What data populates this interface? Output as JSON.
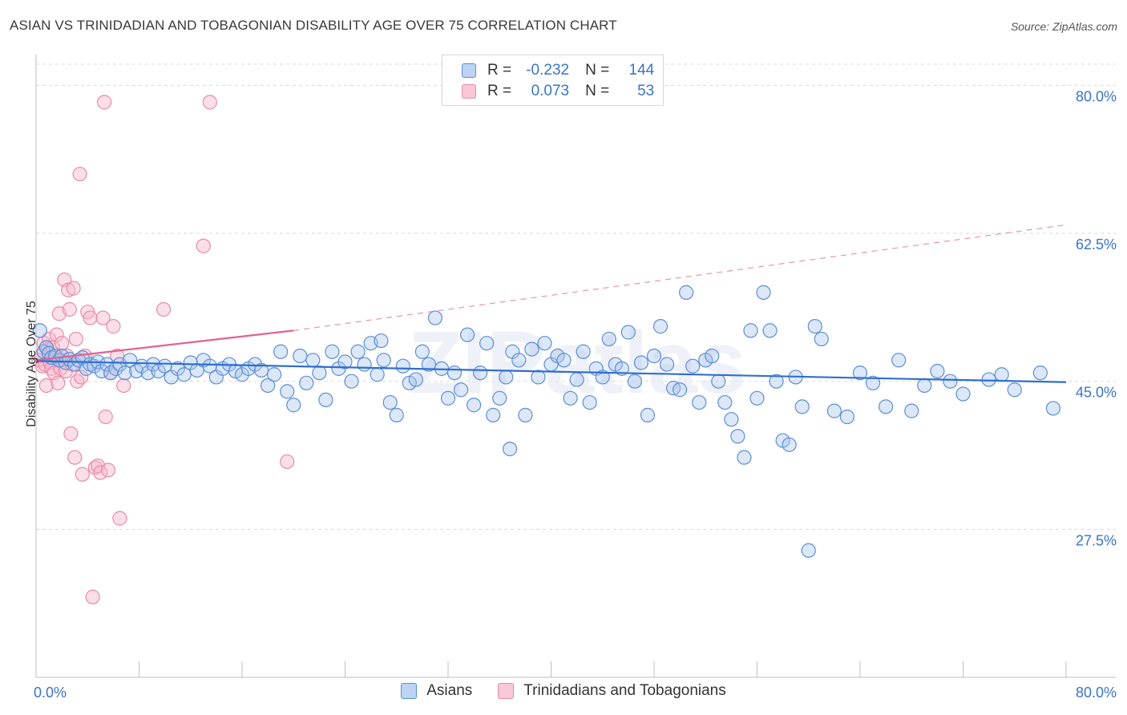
{
  "header": {
    "title": "ASIAN VS TRINIDADIAN AND TOBAGONIAN DISABILITY AGE OVER 75 CORRELATION CHART",
    "source": "Source: ZipAtlas.com"
  },
  "legend": {
    "rows": [
      {
        "r_label": "R =",
        "r_value": "-0.232",
        "n_label": "N =",
        "n_value": "144"
      },
      {
        "r_label": "R =",
        "r_value": "0.073",
        "n_label": "N =",
        "n_value": "53"
      }
    ],
    "series": [
      "Asians",
      "Trinidadians and Tobagonians"
    ]
  },
  "colors": {
    "blue_fill": "#a8c4ee",
    "blue_stroke": "#5b8fd6",
    "blue_line": "#2f6fd0",
    "pink_fill": "#f7b9cc",
    "pink_stroke": "#e98aa8",
    "pink_line": "#e2638c",
    "axis_text": "#3a74c9"
  },
  "watermark": "ZIPatlas",
  "chart_data": {
    "type": "scatter",
    "title": "ASIAN VS TRINIDADIAN AND TOBAGONIAN DISABILITY AGE OVER 75 CORRELATION CHART",
    "xlabel": "",
    "ylabel": "Disability Age Over 75",
    "xlim": [
      0,
      80
    ],
    "ylim": [
      10,
      82.5
    ],
    "x_tick_labels": [
      "0.0%",
      "80.0%"
    ],
    "y_ticks": [
      27.5,
      45.0,
      62.5,
      80.0
    ],
    "y_tick_labels": [
      "27.5%",
      "45.0%",
      "62.5%",
      "80.0%"
    ],
    "grid": true,
    "legend_position": "top-center",
    "series": [
      {
        "name": "Asians",
        "r": -0.232,
        "n": 144,
        "trend": {
          "x": [
            0,
            80
          ],
          "y": [
            47.4,
            44.9
          ],
          "style": "solid"
        },
        "points": [
          [
            0.3,
            51.0
          ],
          [
            0.6,
            48.5
          ],
          [
            0.8,
            49.0
          ],
          [
            1.0,
            48.3
          ],
          [
            1.2,
            47.8
          ],
          [
            1.5,
            48.0
          ],
          [
            1.8,
            47.5
          ],
          [
            2.0,
            48.0
          ],
          [
            2.3,
            47.2
          ],
          [
            2.6,
            47.6
          ],
          [
            3.0,
            47.0
          ],
          [
            3.3,
            47.5
          ],
          [
            3.6,
            47.8
          ],
          [
            3.9,
            46.5
          ],
          [
            4.2,
            47.0
          ],
          [
            4.5,
            46.8
          ],
          [
            4.8,
            47.3
          ],
          [
            5.1,
            46.2
          ],
          [
            5.5,
            47.0
          ],
          [
            5.8,
            46.0
          ],
          [
            6.2,
            46.5
          ],
          [
            6.5,
            47.0
          ],
          [
            6.9,
            46.0
          ],
          [
            7.3,
            47.5
          ],
          [
            7.8,
            46.2
          ],
          [
            8.2,
            46.8
          ],
          [
            8.7,
            46.0
          ],
          [
            9.1,
            47.0
          ],
          [
            9.5,
            46.2
          ],
          [
            10.0,
            46.8
          ],
          [
            10.5,
            45.5
          ],
          [
            11.0,
            46.5
          ],
          [
            11.5,
            45.8
          ],
          [
            12.0,
            47.2
          ],
          [
            12.5,
            46.3
          ],
          [
            13.0,
            47.5
          ],
          [
            13.5,
            46.8
          ],
          [
            14.0,
            45.5
          ],
          [
            14.5,
            46.5
          ],
          [
            15.0,
            47.0
          ],
          [
            15.5,
            46.2
          ],
          [
            16.0,
            45.8
          ],
          [
            16.5,
            46.5
          ],
          [
            17.0,
            47.0
          ],
          [
            17.5,
            46.3
          ],
          [
            18.0,
            44.5
          ],
          [
            18.5,
            45.8
          ],
          [
            19.0,
            48.5
          ],
          [
            19.5,
            43.8
          ],
          [
            20.0,
            42.2
          ],
          [
            20.5,
            48.0
          ],
          [
            21.0,
            44.8
          ],
          [
            21.5,
            47.5
          ],
          [
            22.0,
            46.0
          ],
          [
            22.5,
            42.8
          ],
          [
            23.0,
            48.5
          ],
          [
            23.5,
            46.5
          ],
          [
            24.0,
            47.3
          ],
          [
            24.5,
            45.0
          ],
          [
            25.0,
            48.5
          ],
          [
            25.5,
            47.0
          ],
          [
            26.0,
            49.5
          ],
          [
            26.5,
            45.8
          ],
          [
            27.0,
            47.5
          ],
          [
            27.5,
            42.5
          ],
          [
            28.0,
            41.0
          ],
          [
            28.5,
            46.8
          ],
          [
            29.0,
            44.8
          ],
          [
            29.5,
            45.2
          ],
          [
            30.0,
            48.5
          ],
          [
            30.5,
            47.0
          ],
          [
            31.0,
            52.5
          ],
          [
            31.5,
            46.5
          ],
          [
            32.0,
            43.0
          ],
          [
            32.5,
            46.0
          ],
          [
            33.0,
            44.0
          ],
          [
            33.5,
            50.5
          ],
          [
            34.0,
            42.2
          ],
          [
            34.5,
            46.0
          ],
          [
            35.0,
            49.5
          ],
          [
            35.5,
            41.0
          ],
          [
            36.0,
            43.0
          ],
          [
            36.5,
            45.5
          ],
          [
            37.0,
            48.5
          ],
          [
            37.5,
            47.5
          ],
          [
            38.0,
            41.0
          ],
          [
            38.5,
            48.8
          ],
          [
            39.0,
            45.5
          ],
          [
            39.5,
            49.5
          ],
          [
            40.0,
            47.0
          ],
          [
            40.5,
            48.0
          ],
          [
            41.0,
            47.5
          ],
          [
            41.5,
            43.0
          ],
          [
            42.0,
            45.2
          ],
          [
            42.5,
            48.5
          ],
          [
            43.0,
            42.5
          ],
          [
            43.5,
            46.5
          ],
          [
            44.0,
            45.5
          ],
          [
            44.5,
            50.0
          ],
          [
            45.0,
            47.0
          ],
          [
            45.5,
            46.5
          ],
          [
            46.0,
            50.8
          ],
          [
            46.5,
            45.0
          ],
          [
            47.0,
            47.2
          ],
          [
            47.5,
            41.0
          ],
          [
            48.0,
            48.0
          ],
          [
            48.5,
            51.5
          ],
          [
            49.0,
            47.0
          ],
          [
            49.5,
            44.2
          ],
          [
            50.0,
            44.0
          ],
          [
            50.5,
            55.5
          ],
          [
            51.0,
            46.8
          ],
          [
            51.5,
            42.5
          ],
          [
            52.0,
            47.5
          ],
          [
            52.5,
            48.0
          ],
          [
            53.0,
            45.0
          ],
          [
            53.5,
            42.5
          ],
          [
            54.0,
            40.5
          ],
          [
            54.5,
            38.5
          ],
          [
            55.0,
            36.0
          ],
          [
            55.5,
            51.0
          ],
          [
            56.0,
            43.0
          ],
          [
            56.5,
            55.5
          ],
          [
            57.0,
            51.0
          ],
          [
            57.5,
            45.0
          ],
          [
            58.0,
            38.0
          ],
          [
            58.5,
            37.5
          ],
          [
            59.0,
            45.5
          ],
          [
            59.5,
            42.0
          ],
          [
            60.0,
            25.0
          ],
          [
            60.5,
            51.5
          ],
          [
            61.0,
            50.0
          ],
          [
            62.0,
            41.5
          ],
          [
            63.0,
            40.8
          ],
          [
            64.0,
            46.0
          ],
          [
            65.0,
            44.8
          ],
          [
            66.0,
            42.0
          ],
          [
            67.0,
            47.5
          ],
          [
            68.0,
            41.5
          ],
          [
            69.0,
            44.5
          ],
          [
            70.0,
            46.2
          ],
          [
            71.0,
            45.0
          ],
          [
            72.0,
            43.5
          ],
          [
            74.0,
            45.2
          ],
          [
            76.0,
            44.0
          ],
          [
            78.0,
            46.0
          ],
          [
            79.0,
            41.8
          ],
          [
            75.0,
            45.8
          ],
          [
            36.8,
            37.0
          ],
          [
            26.8,
            49.8
          ]
        ]
      },
      {
        "name": "Trinidadians and Tobagonians",
        "r": 0.073,
        "n": 53,
        "trend": {
          "x": [
            0,
            20
          ],
          "y": [
            47.5,
            51.0
          ],
          "style": "solid",
          "extended_to": [
            80,
            63.5
          ],
          "extended_style": "dashed"
        },
        "points": [
          [
            0.2,
            47.5
          ],
          [
            0.4,
            48.0
          ],
          [
            0.5,
            46.8
          ],
          [
            0.6,
            49.5
          ],
          [
            0.7,
            47.0
          ],
          [
            0.8,
            44.5
          ],
          [
            0.9,
            48.8
          ],
          [
            1.0,
            50.0
          ],
          [
            1.1,
            47.2
          ],
          [
            1.2,
            46.5
          ],
          [
            1.3,
            49.0
          ],
          [
            1.4,
            46.0
          ],
          [
            1.5,
            47.8
          ],
          [
            1.6,
            50.5
          ],
          [
            1.7,
            44.8
          ],
          [
            1.8,
            53.0
          ],
          [
            1.9,
            46.5
          ],
          [
            2.0,
            49.5
          ],
          [
            2.1,
            47.5
          ],
          [
            2.2,
            57.0
          ],
          [
            2.3,
            46.2
          ],
          [
            2.4,
            48.0
          ],
          [
            2.5,
            55.8
          ],
          [
            2.6,
            53.5
          ],
          [
            2.7,
            38.8
          ],
          [
            2.8,
            47.0
          ],
          [
            2.9,
            56.0
          ],
          [
            3.0,
            36.0
          ],
          [
            3.1,
            50.0
          ],
          [
            3.2,
            45.0
          ],
          [
            3.4,
            69.5
          ],
          [
            3.5,
            45.5
          ],
          [
            3.6,
            34.0
          ],
          [
            3.8,
            48.0
          ],
          [
            4.0,
            53.2
          ],
          [
            4.2,
            52.5
          ],
          [
            4.4,
            19.5
          ],
          [
            4.6,
            34.8
          ],
          [
            4.8,
            35.0
          ],
          [
            5.0,
            34.2
          ],
          [
            5.2,
            52.5
          ],
          [
            5.4,
            40.8
          ],
          [
            5.6,
            34.5
          ],
          [
            5.8,
            46.0
          ],
          [
            6.0,
            51.5
          ],
          [
            6.3,
            48.0
          ],
          [
            6.5,
            28.8
          ],
          [
            6.8,
            44.5
          ],
          [
            13.0,
            61.0
          ],
          [
            5.3,
            78.0
          ],
          [
            13.5,
            78.0
          ],
          [
            9.9,
            53.5
          ],
          [
            19.5,
            35.5
          ]
        ]
      }
    ]
  }
}
